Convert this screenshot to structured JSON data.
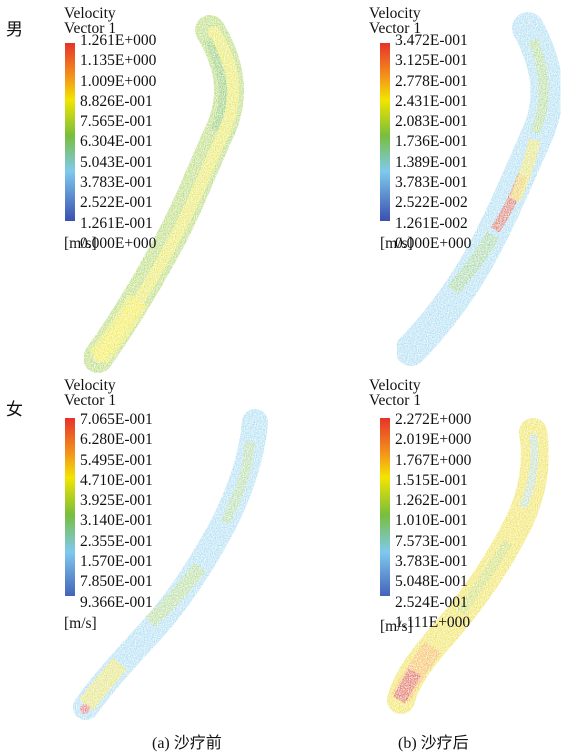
{
  "rows": {
    "male": "男",
    "female": "女"
  },
  "panels": {
    "tl": {
      "title_line1": "Velocity",
      "title_line2": "Vector 1",
      "ticks": [
        "1.261E+000",
        "1.135E+000",
        "1.009E+000",
        "8.826E-001",
        "7.565E-001",
        "6.304E-001",
        "5.043E-001",
        "3.783E-001",
        "2.522E-001",
        "1.261E-001",
        "0.000E+000"
      ],
      "unit": "[m/s]"
    },
    "tr": {
      "title_line1": "Velocity",
      "title_line2": "Vector 1",
      "ticks": [
        "3.472E-001",
        "3.125E-001",
        "2.778E-001",
        "2.431E-001",
        "2.083E-001",
        "1.736E-001",
        "1.389E-001",
        "3.783E-001",
        "2.522E-002",
        "1.261E-002",
        "0.000E+000"
      ],
      "unit": "[m/s]"
    },
    "bl": {
      "title_line1": "Velocity",
      "title_line2": "Vector 1",
      "ticks": [
        "7.065E-001",
        "6.280E-001",
        "5.495E-001",
        "4.710E-001",
        "3.925E-001",
        "3.140E-001",
        "2.355E-001",
        "1.570E-001",
        "7.850E-001",
        "9.366E-001"
      ],
      "unit": "[m/s]"
    },
    "br": {
      "title_line1": "Velocity",
      "title_line2": "Vector 1",
      "ticks": [
        "2.272E+000",
        "2.019E+000",
        "1.767E+000",
        "1.515E-001",
        "1.262E-001",
        "1.010E-001",
        "7.573E-001",
        "3.783E-001",
        "5.048E-001",
        "2.524E-001",
        "1.111E+000"
      ],
      "unit": "[m/s]"
    }
  },
  "captions": {
    "a": "(a) 沙疗前",
    "b": "(b) 沙疗后"
  },
  "colors": {
    "red": "#e8322a",
    "yellow": "#f2e500",
    "green": "#78be3c",
    "cyan": "#7fc9ee",
    "blue": "#3a50b0"
  }
}
